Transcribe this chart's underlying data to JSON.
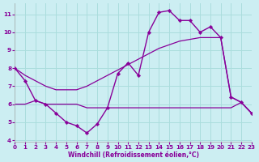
{
  "background_color": "#cceef2",
  "grid_color": "#aadddd",
  "line_color": "#880099",
  "xlim": [
    0,
    23
  ],
  "ylim": [
    3.9,
    11.6
  ],
  "yticks": [
    4,
    5,
    6,
    7,
    8,
    9,
    10,
    11
  ],
  "xticks": [
    0,
    1,
    2,
    3,
    4,
    5,
    6,
    7,
    8,
    9,
    10,
    11,
    12,
    13,
    14,
    15,
    16,
    17,
    18,
    19,
    20,
    21,
    22,
    23
  ],
  "xlabel": "Windchill (Refroidissement éolien,°C)",
  "line1_x": [
    0,
    1,
    2,
    3,
    4,
    5,
    6,
    7,
    8,
    9,
    10,
    11,
    12,
    13,
    14,
    15,
    16,
    17,
    18,
    19,
    20,
    21,
    22,
    23
  ],
  "line1_y": [
    8.0,
    7.3,
    6.2,
    6.0,
    5.5,
    5.0,
    4.8,
    4.4,
    4.9,
    5.8,
    7.7,
    8.3,
    7.6,
    10.0,
    11.1,
    11.2,
    10.65,
    10.65,
    10.0,
    10.3,
    9.7,
    6.4,
    6.1,
    5.5
  ],
  "line2_x": [
    0,
    1,
    2,
    3,
    4,
    5,
    6,
    7,
    8,
    9,
    10,
    11,
    12,
    13,
    14,
    15,
    16,
    17,
    18,
    19,
    20,
    21,
    22,
    23
  ],
  "line2_y": [
    8.0,
    7.6,
    7.3,
    7.0,
    6.8,
    6.8,
    6.8,
    7.0,
    7.3,
    7.6,
    7.9,
    8.2,
    8.5,
    8.8,
    9.1,
    9.3,
    9.5,
    9.6,
    9.7,
    9.7,
    9.7,
    6.4,
    6.1,
    5.5
  ],
  "line3_x": [
    0,
    1,
    2,
    3,
    4,
    5,
    6,
    7,
    8,
    9,
    10,
    11,
    12,
    13,
    14,
    15,
    16,
    17,
    18,
    19,
    20,
    21,
    22,
    23
  ],
  "line3_y": [
    6.0,
    6.0,
    6.2,
    6.0,
    6.0,
    6.0,
    6.0,
    5.8,
    5.8,
    5.8,
    5.8,
    5.8,
    5.8,
    5.8,
    5.8,
    5.8,
    5.8,
    5.8,
    5.8,
    5.8,
    5.8,
    5.8,
    6.1,
    5.5
  ]
}
